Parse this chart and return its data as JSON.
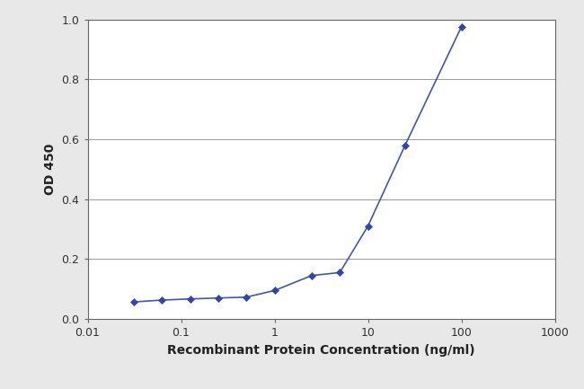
{
  "x": [
    0.03125,
    0.0625,
    0.125,
    0.25,
    0.5,
    1.0,
    2.5,
    5.0,
    10.0,
    25.0,
    100.0
  ],
  "y": [
    0.057,
    0.063,
    0.067,
    0.07,
    0.073,
    0.095,
    0.145,
    0.155,
    0.31,
    0.58,
    0.975
  ],
  "line_color": "#4455aa",
  "marker_color": "#3344aa",
  "marker_style": "D",
  "marker_size": 4,
  "line_width": 1.2,
  "xlabel": "Recombinant Protein Concentration (ng/ml)",
  "ylabel": "OD 450",
  "xlim": [
    0.01,
    1000
  ],
  "ylim": [
    0,
    1.0
  ],
  "yticks": [
    0,
    0.2,
    0.4,
    0.6,
    0.8,
    1.0
  ],
  "xtick_positions": [
    0.01,
    0.1,
    1,
    10,
    100,
    1000
  ],
  "xtick_labels": [
    "0.01",
    "0.1",
    "1",
    "10",
    "100",
    "1000"
  ],
  "xlabel_fontsize": 10,
  "ylabel_fontsize": 10,
  "tick_fontsize": 9,
  "plot_bgcolor": "#ffffff",
  "fig_bgcolor": "#e8e8e8",
  "grid_color": "#999999",
  "grid_linewidth": 0.7,
  "spine_color": "#666666"
}
